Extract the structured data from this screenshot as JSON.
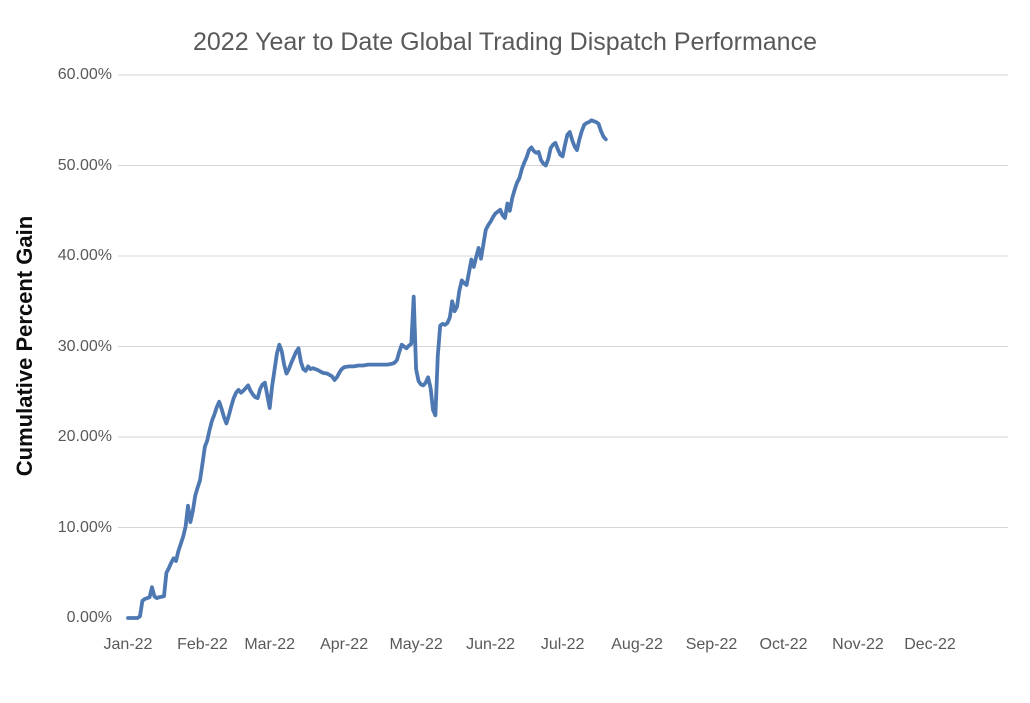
{
  "chart_data": {
    "type": "line",
    "title": "2022 Year to Date Global Trading Dispatch Performance",
    "xlabel": "",
    "ylabel": "Cumulative Percent Gain",
    "x_tick_labels": [
      "Jan-22",
      "Feb-22",
      "Mar-22",
      "Apr-22",
      "May-22",
      "Jun-22",
      "Jul-22",
      "Aug-22",
      "Sep-22",
      "Oct-22",
      "Nov-22",
      "Dec-22"
    ],
    "y_tick_labels": [
      "0.00%",
      "10.00%",
      "20.00%",
      "30.00%",
      "40.00%",
      "50.00%",
      "60.00%"
    ],
    "ylim": [
      0,
      60
    ],
    "x_range": [
      "2022-01-01",
      "2022-12-31"
    ],
    "grid": "horizontal-only, no gridline at 0%",
    "legend": "none",
    "line_color": "#4e78b2",
    "grid_color": "#d6d6d6",
    "text_color": "#595959",
    "series": [
      {
        "name": "Cumulative Percent Gain",
        "unit": "%",
        "points": [
          [
            "2022-01-01",
            0.0
          ],
          [
            "2022-01-03",
            0.0
          ],
          [
            "2022-01-05",
            0.0
          ],
          [
            "2022-01-06",
            0.2
          ],
          [
            "2022-01-07",
            1.9
          ],
          [
            "2022-01-08",
            2.1
          ],
          [
            "2022-01-10",
            2.3
          ],
          [
            "2022-01-11",
            3.4
          ],
          [
            "2022-01-12",
            2.4
          ],
          [
            "2022-01-13",
            2.2
          ],
          [
            "2022-01-14",
            2.3
          ],
          [
            "2022-01-16",
            2.4
          ],
          [
            "2022-01-17",
            5.0
          ],
          [
            "2022-01-18",
            5.5
          ],
          [
            "2022-01-19",
            6.1
          ],
          [
            "2022-01-20",
            6.6
          ],
          [
            "2022-01-21",
            6.3
          ],
          [
            "2022-01-22",
            7.4
          ],
          [
            "2022-01-23",
            8.2
          ],
          [
            "2022-01-24",
            9.0
          ],
          [
            "2022-01-25",
            10.1
          ],
          [
            "2022-01-26",
            12.4
          ],
          [
            "2022-01-27",
            10.6
          ],
          [
            "2022-01-28",
            11.8
          ],
          [
            "2022-01-29",
            13.5
          ],
          [
            "2022-01-30",
            14.4
          ],
          [
            "2022-01-31",
            15.2
          ],
          [
            "2022-02-01",
            17.0
          ],
          [
            "2022-02-02",
            18.9
          ],
          [
            "2022-02-03",
            19.6
          ],
          [
            "2022-02-04",
            20.8
          ],
          [
            "2022-02-05",
            21.8
          ],
          [
            "2022-02-06",
            22.5
          ],
          [
            "2022-02-07",
            23.3
          ],
          [
            "2022-02-08",
            23.9
          ],
          [
            "2022-02-09",
            23.1
          ],
          [
            "2022-02-10",
            22.2
          ],
          [
            "2022-02-11",
            21.5
          ],
          [
            "2022-02-12",
            22.4
          ],
          [
            "2022-02-13",
            23.4
          ],
          [
            "2022-02-14",
            24.3
          ],
          [
            "2022-02-15",
            24.9
          ],
          [
            "2022-02-16",
            25.2
          ],
          [
            "2022-02-17",
            24.9
          ],
          [
            "2022-02-18",
            25.1
          ],
          [
            "2022-02-19",
            25.4
          ],
          [
            "2022-02-20",
            25.7
          ],
          [
            "2022-02-21",
            25.1
          ],
          [
            "2022-02-22",
            24.7
          ],
          [
            "2022-02-23",
            24.4
          ],
          [
            "2022-02-24",
            24.3
          ],
          [
            "2022-02-25",
            25.3
          ],
          [
            "2022-02-26",
            25.8
          ],
          [
            "2022-02-27",
            26.0
          ],
          [
            "2022-02-28",
            24.6
          ],
          [
            "2022-03-01",
            23.2
          ],
          [
            "2022-03-02",
            25.6
          ],
          [
            "2022-03-03",
            27.4
          ],
          [
            "2022-03-04",
            29.2
          ],
          [
            "2022-03-05",
            30.2
          ],
          [
            "2022-03-06",
            29.5
          ],
          [
            "2022-03-07",
            28.0
          ],
          [
            "2022-03-08",
            27.0
          ],
          [
            "2022-03-09",
            27.5
          ],
          [
            "2022-03-10",
            28.2
          ],
          [
            "2022-03-11",
            28.8
          ],
          [
            "2022-03-12",
            29.4
          ],
          [
            "2022-03-13",
            29.8
          ],
          [
            "2022-03-14",
            28.3
          ],
          [
            "2022-03-15",
            27.5
          ],
          [
            "2022-03-16",
            27.3
          ],
          [
            "2022-03-17",
            27.8
          ],
          [
            "2022-03-18",
            27.5
          ],
          [
            "2022-03-19",
            27.6
          ],
          [
            "2022-03-21",
            27.4
          ],
          [
            "2022-03-23",
            27.1
          ],
          [
            "2022-03-25",
            27.0
          ],
          [
            "2022-03-27",
            26.7
          ],
          [
            "2022-03-28",
            26.3
          ],
          [
            "2022-03-29",
            26.6
          ],
          [
            "2022-03-30",
            27.1
          ],
          [
            "2022-03-31",
            27.5
          ],
          [
            "2022-04-01",
            27.7
          ],
          [
            "2022-04-03",
            27.8
          ],
          [
            "2022-04-05",
            27.8
          ],
          [
            "2022-04-07",
            27.9
          ],
          [
            "2022-04-09",
            27.9
          ],
          [
            "2022-04-11",
            28.0
          ],
          [
            "2022-04-13",
            28.0
          ],
          [
            "2022-04-15",
            28.0
          ],
          [
            "2022-04-17",
            28.0
          ],
          [
            "2022-04-19",
            28.0
          ],
          [
            "2022-04-21",
            28.1
          ],
          [
            "2022-04-22",
            28.2
          ],
          [
            "2022-04-23",
            28.5
          ],
          [
            "2022-04-24",
            29.4
          ],
          [
            "2022-04-25",
            30.2
          ],
          [
            "2022-04-26",
            30.0
          ],
          [
            "2022-04-27",
            29.8
          ],
          [
            "2022-04-28",
            30.1
          ],
          [
            "2022-04-29",
            30.3
          ],
          [
            "2022-04-30",
            35.5
          ],
          [
            "2022-05-01",
            27.5
          ],
          [
            "2022-05-02",
            26.2
          ],
          [
            "2022-05-03",
            25.8
          ],
          [
            "2022-05-04",
            25.7
          ],
          [
            "2022-05-05",
            26.0
          ],
          [
            "2022-05-06",
            26.6
          ],
          [
            "2022-05-07",
            25.4
          ],
          [
            "2022-05-08",
            23.0
          ],
          [
            "2022-05-09",
            22.4
          ],
          [
            "2022-05-10",
            29.0
          ],
          [
            "2022-05-11",
            32.3
          ],
          [
            "2022-05-12",
            32.5
          ],
          [
            "2022-05-13",
            32.4
          ],
          [
            "2022-05-14",
            32.6
          ],
          [
            "2022-05-15",
            33.2
          ],
          [
            "2022-05-16",
            35.0
          ],
          [
            "2022-05-17",
            33.9
          ],
          [
            "2022-05-18",
            34.4
          ],
          [
            "2022-05-19",
            36.2
          ],
          [
            "2022-05-20",
            37.3
          ],
          [
            "2022-05-21",
            37.0
          ],
          [
            "2022-05-22",
            36.8
          ],
          [
            "2022-05-23",
            38.2
          ],
          [
            "2022-05-24",
            39.6
          ],
          [
            "2022-05-25",
            38.8
          ],
          [
            "2022-05-26",
            39.9
          ],
          [
            "2022-05-27",
            40.9
          ],
          [
            "2022-05-28",
            39.7
          ],
          [
            "2022-05-29",
            41.3
          ],
          [
            "2022-05-30",
            42.9
          ],
          [
            "2022-05-31",
            43.4
          ],
          [
            "2022-06-01",
            43.8
          ],
          [
            "2022-06-02",
            44.3
          ],
          [
            "2022-06-03",
            44.7
          ],
          [
            "2022-06-04",
            44.9
          ],
          [
            "2022-06-05",
            45.1
          ],
          [
            "2022-06-06",
            44.5
          ],
          [
            "2022-06-07",
            44.2
          ],
          [
            "2022-06-08",
            45.8
          ],
          [
            "2022-06-09",
            45.0
          ],
          [
            "2022-06-10",
            46.4
          ],
          [
            "2022-06-11",
            47.3
          ],
          [
            "2022-06-12",
            48.1
          ],
          [
            "2022-06-13",
            48.6
          ],
          [
            "2022-06-14",
            49.6
          ],
          [
            "2022-06-15",
            50.3
          ],
          [
            "2022-06-16",
            50.9
          ],
          [
            "2022-06-17",
            51.7
          ],
          [
            "2022-06-18",
            52.0
          ],
          [
            "2022-06-19",
            51.6
          ],
          [
            "2022-06-20",
            51.4
          ],
          [
            "2022-06-21",
            51.5
          ],
          [
            "2022-06-22",
            50.6
          ],
          [
            "2022-06-23",
            50.2
          ],
          [
            "2022-06-24",
            50.0
          ],
          [
            "2022-06-25",
            50.7
          ],
          [
            "2022-06-26",
            51.9
          ],
          [
            "2022-06-27",
            52.3
          ],
          [
            "2022-06-28",
            52.5
          ],
          [
            "2022-06-29",
            51.8
          ],
          [
            "2022-06-30",
            51.2
          ],
          [
            "2022-07-01",
            51.0
          ],
          [
            "2022-07-02",
            52.3
          ],
          [
            "2022-07-03",
            53.4
          ],
          [
            "2022-07-04",
            53.7
          ],
          [
            "2022-07-05",
            52.8
          ],
          [
            "2022-07-06",
            52.1
          ],
          [
            "2022-07-07",
            51.7
          ],
          [
            "2022-07-08",
            52.9
          ],
          [
            "2022-07-09",
            53.8
          ],
          [
            "2022-07-10",
            54.5
          ],
          [
            "2022-07-11",
            54.7
          ],
          [
            "2022-07-12",
            54.8
          ],
          [
            "2022-07-13",
            55.0
          ],
          [
            "2022-07-14",
            54.9
          ],
          [
            "2022-07-15",
            54.8
          ],
          [
            "2022-07-16",
            54.6
          ],
          [
            "2022-07-17",
            53.8
          ],
          [
            "2022-07-18",
            53.2
          ],
          [
            "2022-07-19",
            52.9
          ]
        ]
      }
    ]
  }
}
